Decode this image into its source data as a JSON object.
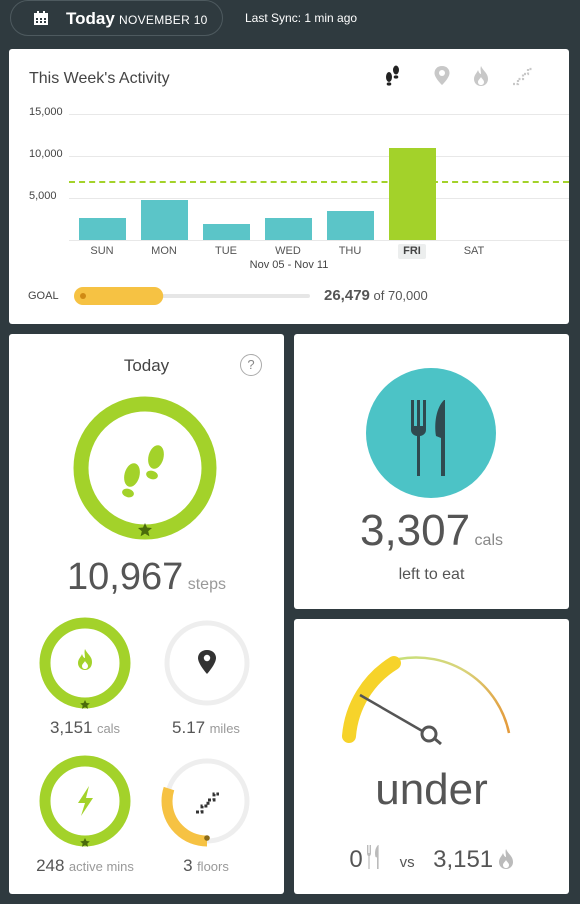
{
  "header": {
    "today_label": "Today",
    "date_label": "NOVEMBER 10",
    "sync_label": "Last Sync: 1 min ago"
  },
  "week_card": {
    "title": "This Week's Activity",
    "tabs": [
      {
        "name": "steps-icon",
        "active": true
      },
      {
        "name": "location-icon",
        "active": false
      },
      {
        "name": "flame-icon",
        "active": false
      },
      {
        "name": "stairs-icon",
        "active": false
      }
    ],
    "range_label": "Nov 05 - Nov 11",
    "goal_label": "GOAL",
    "goal_value": "26,479",
    "goal_of": "of 70,000",
    "goal_progress": 0.378
  },
  "chart_data": {
    "type": "bar",
    "categories": [
      "SUN",
      "MON",
      "TUE",
      "WED",
      "THU",
      "FRI",
      "SAT"
    ],
    "values": [
      2600,
      4800,
      1900,
      2600,
      3500,
      10900,
      0
    ],
    "highlight_index": 5,
    "goal_line": 7000,
    "yticks": [
      "15,000",
      "10,000",
      "5,000"
    ],
    "ylim": [
      0,
      15000
    ],
    "colors": {
      "bar": "#5bc5c8",
      "highlight": "#a3d22a",
      "goal": "#a3d22a"
    }
  },
  "today_card": {
    "title": "Today",
    "help_label": "?",
    "steps": "10,967",
    "steps_unit": "steps",
    "calories": "3,151",
    "calories_unit": "cals",
    "distance": "5.17",
    "distance_unit": "miles",
    "active": "248",
    "active_unit": "active mins",
    "floors": "3",
    "floors_unit": "floors",
    "floors_progress": 0.3
  },
  "food_card": {
    "cals": "3,307",
    "cals_unit": "cals",
    "caption": "left to eat"
  },
  "under_card": {
    "status": "under",
    "eaten": "0",
    "vs": "vs",
    "burned": "3,151"
  },
  "colors": {
    "background": "#2f3a3f",
    "green": "#a3d22a",
    "teal": "#4cc3c6",
    "orange": "#f6c243"
  }
}
